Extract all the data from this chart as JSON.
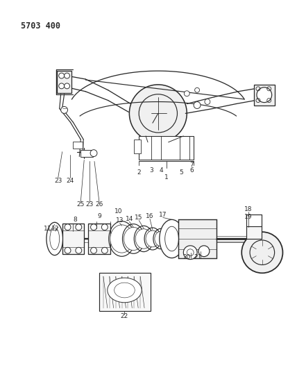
{
  "bg_color": "#ffffff",
  "line_color": "#2a2a2a",
  "header": "5703 400",
  "header_fontsize": 8.5,
  "label_fontsize": 6.5,
  "lw": 0.85
}
